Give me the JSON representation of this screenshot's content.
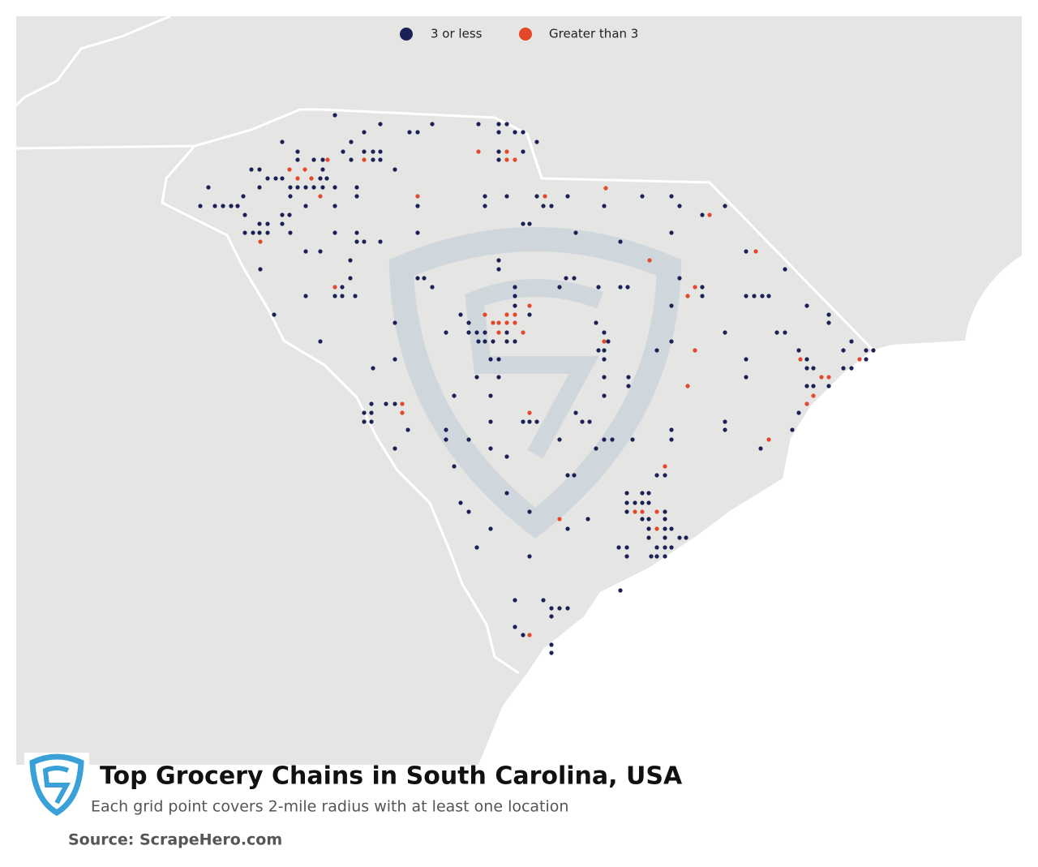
{
  "legend": [
    {
      "label": "3 or less",
      "color": "#1b2155"
    },
    {
      "label": "Greater than 3",
      "color": "#e4472a"
    }
  ],
  "title": "Top Grocery Chains in South Carolina, USA",
  "subtitle": "Each grid point covers 2-mile radius with at least one location",
  "source": "Source: ScrapeHero.com"
}
